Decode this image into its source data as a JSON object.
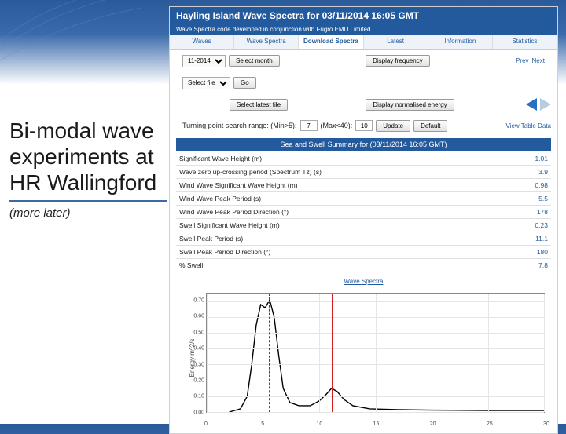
{
  "slide": {
    "title": "Bi-modal wave experiments at HR Wallingford",
    "subtitle": "(more later)"
  },
  "header": {
    "title": "Hayling Island Wave Spectra for 03/11/2014 16:05 GMT",
    "subhead": "Wave Spectra code developed in conjunction with Fugro EMU Limited"
  },
  "tabs": [
    "Waves",
    "Wave Spectra",
    "Download Spectra",
    "Latest",
    "Information",
    "Statistics"
  ],
  "active_tab_index": 2,
  "controls": {
    "month_options": [
      "11-2014"
    ],
    "month_value": "11-2014",
    "select_month_label": "Select month",
    "select_file_label": "Select file",
    "go_label": "Go",
    "display_freq_label": "Display frequency",
    "prev_label": "Prev",
    "next_label": "Next",
    "select_latest_label": "Select latest file",
    "display_norm_label": "Display normalised energy",
    "turning_label": "Turning point search range: (Min>5):",
    "turning_min": "7",
    "turning_mid_label": "(Max<40):",
    "turning_max": "10",
    "update_label": "Update",
    "default_label": "Default",
    "view_table_label": "View Table Data"
  },
  "summary": {
    "title": "Sea and Swell Summary for (03/11/2014 16:05 GMT)",
    "rows": [
      {
        "label": "Significant Wave Height (m)",
        "value": "1.01"
      },
      {
        "label": "Wave zero up-crossing period (Spectrum Tz) (s)",
        "value": "3.9"
      },
      {
        "label": "Wind Wave Significant Wave Height (m)",
        "value": "0.98"
      },
      {
        "label": "Wind Wave Peak Period (s)",
        "value": "5.5"
      },
      {
        "label": "Wind Wave Peak Period Direction (°)",
        "value": "178"
      },
      {
        "label": "Swell Significant Wave Height (m)",
        "value": "0.23"
      },
      {
        "label": "Swell Peak Period (s)",
        "value": "11.1"
      },
      {
        "label": "Swell Peak Period Direction (°)",
        "value": "180"
      },
      {
        "label": "% Swell",
        "value": "7.8"
      }
    ],
    "spectra_link": "Wave Spectra"
  },
  "chart": {
    "y_label": "Energy m^2/s",
    "ylim": [
      0,
      0.75
    ],
    "ytick_step": 0.1,
    "xlim": [
      0,
      30
    ],
    "xtick_step": 5,
    "grid_color": "#e5e5e5",
    "line_color": "#000000",
    "line_width": 1.4,
    "marker_swell_period": 11.1,
    "marker_swell_color": "#d02020",
    "marker_wind_period": 5.5,
    "marker_wind_color": "#2040d0",
    "data": [
      {
        "x": 2.0,
        "y": 0.0
      },
      {
        "x": 3.0,
        "y": 0.02
      },
      {
        "x": 3.6,
        "y": 0.1
      },
      {
        "x": 4.0,
        "y": 0.3
      },
      {
        "x": 4.4,
        "y": 0.55
      },
      {
        "x": 4.8,
        "y": 0.68
      },
      {
        "x": 5.2,
        "y": 0.66
      },
      {
        "x": 5.6,
        "y": 0.71
      },
      {
        "x": 6.0,
        "y": 0.6
      },
      {
        "x": 6.4,
        "y": 0.36
      },
      {
        "x": 6.8,
        "y": 0.15
      },
      {
        "x": 7.4,
        "y": 0.06
      },
      {
        "x": 8.2,
        "y": 0.04
      },
      {
        "x": 9.2,
        "y": 0.04
      },
      {
        "x": 10.0,
        "y": 0.07
      },
      {
        "x": 10.6,
        "y": 0.11
      },
      {
        "x": 11.1,
        "y": 0.15
      },
      {
        "x": 11.6,
        "y": 0.13
      },
      {
        "x": 12.2,
        "y": 0.08
      },
      {
        "x": 13.0,
        "y": 0.04
      },
      {
        "x": 14.5,
        "y": 0.02
      },
      {
        "x": 17.0,
        "y": 0.015
      },
      {
        "x": 20.0,
        "y": 0.012
      },
      {
        "x": 25.0,
        "y": 0.01
      },
      {
        "x": 30.0,
        "y": 0.01
      }
    ]
  }
}
